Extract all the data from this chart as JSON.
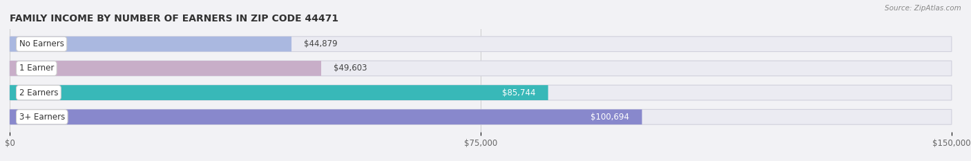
{
  "title": "FAMILY INCOME BY NUMBER OF EARNERS IN ZIP CODE 44471",
  "source": "Source: ZipAtlas.com",
  "categories": [
    "No Earners",
    "1 Earner",
    "2 Earners",
    "3+ Earners"
  ],
  "values": [
    44879,
    49603,
    85744,
    100694
  ],
  "bar_colors": [
    "#aab8e0",
    "#c8aec8",
    "#38b8b8",
    "#8888cc"
  ],
  "bar_bg_color": "#ebebf2",
  "bar_edge_color": "#d0d0dc",
  "xlim": [
    0,
    150000
  ],
  "xticks": [
    0,
    75000,
    150000
  ],
  "xtick_labels": [
    "$0",
    "$75,000",
    "$150,000"
  ],
  "value_labels": [
    "$44,879",
    "$49,603",
    "$85,744",
    "$100,694"
  ],
  "value_inside": [
    false,
    false,
    true,
    true
  ],
  "title_fontsize": 10,
  "label_fontsize": 8.5,
  "tick_fontsize": 8.5,
  "bar_height": 0.62,
  "background_color": "#f2f2f5"
}
